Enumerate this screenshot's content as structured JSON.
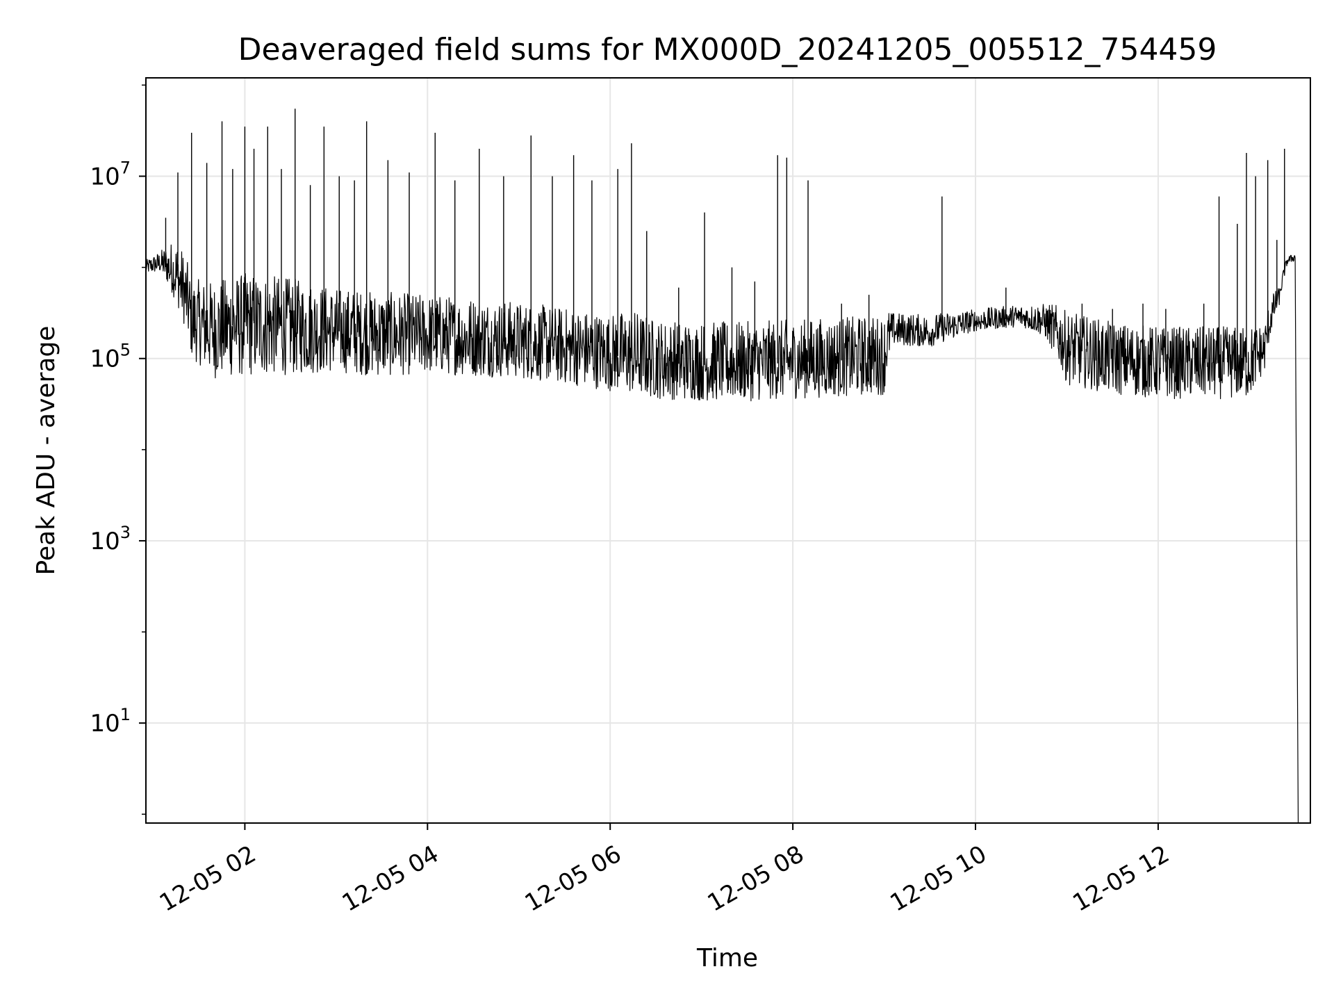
{
  "chart_data": {
    "type": "line",
    "title": "Deaveraged field sums for MX000D_20241205_005512_754459",
    "xlabel": "Time",
    "ylabel": "Peak ADU - average",
    "yscale": "log",
    "grid": true,
    "x_ticks": [
      "12-05 02",
      "12-05 04",
      "12-05 06",
      "12-05 08",
      "12-05 10",
      "12-05 12"
    ],
    "y_ticks": [
      {
        "value": 10,
        "base": "10",
        "exp": "1"
      },
      {
        "value": 1000,
        "base": "10",
        "exp": "3"
      },
      {
        "value": 100000,
        "base": "10",
        "exp": "5"
      },
      {
        "value": 10000000,
        "base": "10",
        "exp": "7"
      }
    ],
    "xlim": [
      "2024-12-05 00:55",
      "2024-12-05 13:40"
    ],
    "ylim": [
      0.8,
      120000000
    ],
    "series": [
      {
        "color": "#000000",
        "x": [
          "2024-12-05 00:55",
          "2024-12-05 01:05",
          "2024-12-05 01:15",
          "2024-12-05 01:25",
          "2024-12-05 01:40",
          "2024-12-05 02:00",
          "2024-12-05 02:30",
          "2024-12-05 03:00",
          "2024-12-05 03:30",
          "2024-12-05 04:00",
          "2024-12-05 04:30",
          "2024-12-05 05:00",
          "2024-12-05 05:30",
          "2024-12-05 06:00",
          "2024-12-05 06:15",
          "2024-12-05 06:30",
          "2024-12-05 07:00",
          "2024-12-05 07:30",
          "2024-12-05 08:00",
          "2024-12-05 08:30",
          "2024-12-05 09:00",
          "2024-12-05 09:05",
          "2024-12-05 09:30",
          "2024-12-05 10:00",
          "2024-12-05 10:30",
          "2024-12-05 10:45",
          "2024-12-05 11:00",
          "2024-12-05 11:30",
          "2024-12-05 12:00",
          "2024-12-05 12:30",
          "2024-12-05 13:00",
          "2024-12-05 13:10",
          "2024-12-05 13:20",
          "2024-12-05 13:25",
          "2024-12-05 13:30",
          "2024-12-05 13:32"
        ],
        "median": [
          1000000,
          1100000,
          800000,
          250000,
          200000,
          250000,
          220000,
          200000,
          180000,
          170000,
          160000,
          150000,
          130000,
          110000,
          100000,
          90000,
          85000,
          85000,
          90000,
          95000,
          100000,
          200000,
          190000,
          250000,
          280000,
          250000,
          130000,
          100000,
          90000,
          90000,
          90000,
          120000,
          500000,
          1200000,
          1300000,
          1
        ],
        "spread_low": [
          0.85,
          0.8,
          0.5,
          0.4,
          0.3,
          0.25,
          0.3,
          0.35,
          0.35,
          0.4,
          0.4,
          0.4,
          0.4,
          0.4,
          0.4,
          0.4,
          0.4,
          0.4,
          0.4,
          0.4,
          0.4,
          0.7,
          0.7,
          0.8,
          0.8,
          0.7,
          0.4,
          0.4,
          0.4,
          0.4,
          0.4,
          0.6,
          0.8,
          0.9,
          0.9,
          1
        ],
        "spread_high": [
          1.2,
          1.4,
          2.5,
          3,
          3.5,
          3.5,
          3.5,
          3,
          3,
          3,
          3,
          2.8,
          2.8,
          2.8,
          3.5,
          3,
          3,
          3,
          3,
          3,
          3,
          1.6,
          1.6,
          1.4,
          1.4,
          1.6,
          2.5,
          2.5,
          2.5,
          2.5,
          2.5,
          2,
          1.2,
          1.1,
          1.1,
          1
        ],
        "peaks": [
          [
            "2024-12-05 01:08",
            3500000
          ],
          [
            "2024-12-05 01:16",
            11000000
          ],
          [
            "2024-12-05 01:25",
            30000000
          ],
          [
            "2024-12-05 01:35",
            14000000
          ],
          [
            "2024-12-05 01:45",
            40000000
          ],
          [
            "2024-12-05 01:52",
            12000000
          ],
          [
            "2024-12-05 02:00",
            35000000
          ],
          [
            "2024-12-05 02:06",
            20000000
          ],
          [
            "2024-12-05 02:15",
            35000000
          ],
          [
            "2024-12-05 02:24",
            12000000
          ],
          [
            "2024-12-05 02:33",
            55000000
          ],
          [
            "2024-12-05 02:43",
            8000000
          ],
          [
            "2024-12-05 02:52",
            35000000
          ],
          [
            "2024-12-05 03:02",
            10000000
          ],
          [
            "2024-12-05 03:12",
            9000000
          ],
          [
            "2024-12-05 03:20",
            40000000
          ],
          [
            "2024-12-05 03:34",
            15000000
          ],
          [
            "2024-12-05 03:48",
            11000000
          ],
          [
            "2024-12-05 04:05",
            30000000
          ],
          [
            "2024-12-05 04:18",
            9000000
          ],
          [
            "2024-12-05 04:34",
            20000000
          ],
          [
            "2024-12-05 04:50",
            10000000
          ],
          [
            "2024-12-05 05:08",
            28000000
          ],
          [
            "2024-12-05 05:22",
            10000000
          ],
          [
            "2024-12-05 05:36",
            17000000
          ],
          [
            "2024-12-05 05:48",
            9000000
          ],
          [
            "2024-12-05 06:05",
            12000000
          ],
          [
            "2024-12-05 06:14",
            23000000
          ],
          [
            "2024-12-05 06:24",
            2500000
          ],
          [
            "2024-12-05 06:45",
            600000
          ],
          [
            "2024-12-05 07:02",
            4000000
          ],
          [
            "2024-12-05 07:20",
            1000000
          ],
          [
            "2024-12-05 07:35",
            700000
          ],
          [
            "2024-12-05 07:50",
            17000000
          ],
          [
            "2024-12-05 07:56",
            16000000
          ],
          [
            "2024-12-05 08:10",
            9000000
          ],
          [
            "2024-12-05 08:32",
            400000
          ],
          [
            "2024-12-05 08:50",
            500000
          ],
          [
            "2024-12-05 09:38",
            6000000
          ],
          [
            "2024-12-05 10:20",
            600000
          ],
          [
            "2024-12-05 11:10",
            400000
          ],
          [
            "2024-12-05 11:30",
            350000
          ],
          [
            "2024-12-05 11:50",
            400000
          ],
          [
            "2024-12-05 12:05",
            350000
          ],
          [
            "2024-12-05 12:30",
            400000
          ],
          [
            "2024-12-05 12:40",
            6000000
          ],
          [
            "2024-12-05 12:52",
            3000000
          ],
          [
            "2024-12-05 12:58",
            18000000
          ],
          [
            "2024-12-05 13:04",
            10000000
          ],
          [
            "2024-12-05 13:12",
            15000000
          ],
          [
            "2024-12-05 13:18",
            2000000
          ],
          [
            "2024-12-05 13:23",
            20000000
          ]
        ]
      }
    ]
  }
}
